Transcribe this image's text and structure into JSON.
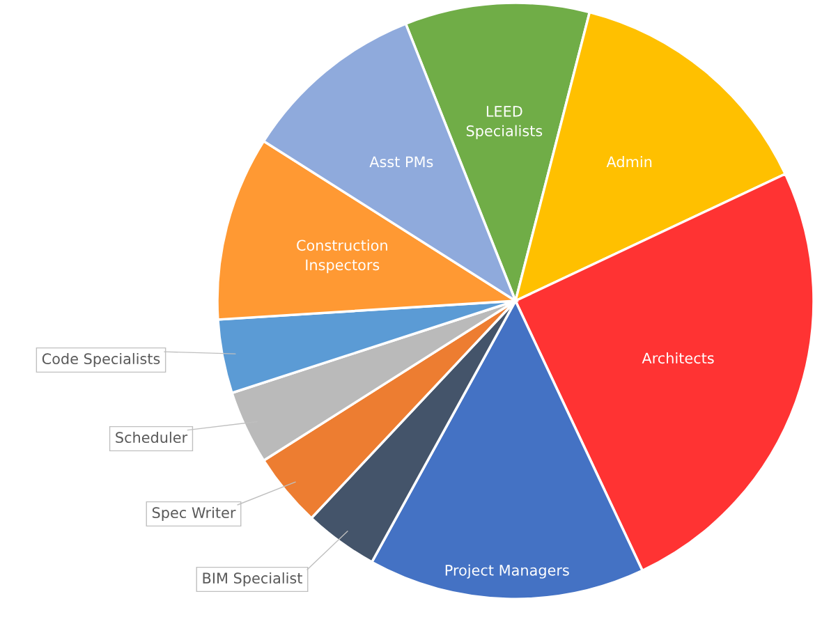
{
  "chart_data": {
    "type": "pie",
    "categories": [
      "LEED Specialists",
      "Admin",
      "Architects",
      "Project Managers",
      "BIM Specialist",
      "Spec Writer",
      "Scheduler",
      "Code Specialists",
      "Construction Inspectors",
      "Asst PMs"
    ],
    "values": [
      10,
      14,
      25,
      15,
      4,
      4,
      4,
      4,
      10,
      10
    ],
    "colors": [
      "#70ad47",
      "#ffc000",
      "#ff3333",
      "#4472c4",
      "#44546a",
      "#ed7d31",
      "#bababa",
      "#5b9bd5",
      "#ff9933",
      "#8faadc"
    ],
    "legend": false
  }
}
